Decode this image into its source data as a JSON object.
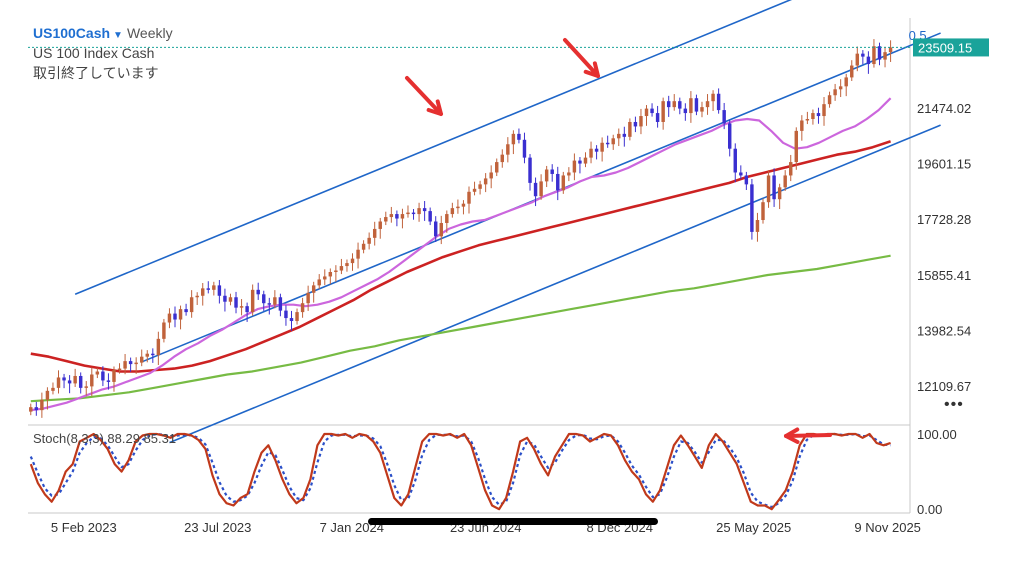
{
  "header": {
    "symbol": "US100Cash",
    "timeframe": "Weekly",
    "name": "US 100 Index Cash",
    "status": "取引終了しています"
  },
  "colors": {
    "bull": "#c0623b",
    "bear": "#3a2fd0",
    "channel": "#1f66c8",
    "ma_fast": "#cc66dd",
    "ma_mid": "#cc2222",
    "ma_slow": "#77bb44",
    "stoch_k": "#c0391b",
    "stoch_d": "#2a4fc8",
    "arrow": "#e53030",
    "last_price_bg": "#1aa39a"
  },
  "icons": {
    "more": "more-horizontal-icon",
    "arrows": "arrow-pointer-icon"
  },
  "more_label": "•••",
  "chart_data": [
    {
      "type": "candlestick",
      "name": "US 100 Index Cash",
      "yaxis_ticks": [
        "12109.67",
        "13982.54",
        "15855.41",
        "17728.28",
        "19601.15",
        "21474.02"
      ],
      "ylim": [
        10800,
        24500
      ],
      "last_price": "23509.15",
      "channel_label": "0.5",
      "xaxis_ticks": [
        "5 Feb 2023",
        "23 Jul 2023",
        "7 Jan 2024",
        "23 Jun 2024",
        "8 Dec 2024",
        "25 May 2025",
        "9 Nov 2025"
      ],
      "x_start": "2022-11-27",
      "x_end": "2025-12-07",
      "closes": [
        11400,
        11300,
        11650,
        11950,
        12050,
        12400,
        12300,
        12200,
        12450,
        12050,
        12100,
        12500,
        12600,
        12300,
        12250,
        12650,
        12700,
        12950,
        12850,
        12900,
        13100,
        13200,
        13150,
        13700,
        14250,
        14550,
        14350,
        14700,
        14600,
        15100,
        15150,
        15400,
        15350,
        15500,
        15150,
        14950,
        15100,
        14750,
        14800,
        14600,
        15350,
        15200,
        14900,
        14850,
        15100,
        14650,
        14400,
        14300,
        14600,
        14900,
        15250,
        15500,
        15700,
        15800,
        15950,
        16000,
        16150,
        16250,
        16400,
        16700,
        16900,
        17100,
        17400,
        17650,
        17800,
        17900,
        17750,
        17900,
        17950,
        17900,
        18100,
        18000,
        17650,
        17150,
        17600,
        17900,
        18100,
        18150,
        18250,
        18650,
        18750,
        18900,
        19100,
        19300,
        19650,
        19900,
        20250,
        20600,
        20400,
        19800,
        18950,
        18500,
        19000,
        19400,
        19250,
        18700,
        19200,
        19300,
        19700,
        19600,
        19800,
        20100,
        20000,
        20300,
        20250,
        20450,
        20600,
        20500,
        21000,
        20850,
        21200,
        21450,
        21300,
        21000,
        21700,
        21500,
        21700,
        21450,
        21300,
        21800,
        21350,
        21500,
        21700,
        21950,
        21400,
        20950,
        20100,
        19300,
        19200,
        18900,
        17300,
        17700,
        18300,
        19200,
        18400,
        18800,
        19200,
        19650,
        20700,
        21050,
        21100,
        21300,
        21200,
        21600,
        21900,
        22100,
        22200,
        22500,
        22900,
        23300,
        23200,
        22950,
        23550,
        23100,
        23350,
        23509
      ],
      "ma_fast": [
        11300,
        11350,
        11450,
        11550,
        11700,
        11850,
        12000,
        12100,
        12250,
        12400,
        12550,
        12800,
        13100,
        13350,
        13550,
        13800,
        14000,
        14250,
        14500,
        14700,
        14800,
        14850,
        14850,
        14800,
        14850,
        14950,
        15100,
        15300,
        15500,
        15700,
        15950,
        16250,
        16550,
        16850,
        17150,
        17400,
        17550,
        17650,
        17700,
        17850,
        18000,
        18150,
        18300,
        18500,
        18650,
        18800,
        19000,
        19150,
        19200,
        19300,
        19450,
        19650,
        19850,
        20050,
        20250,
        20400,
        20550,
        20700,
        20900,
        21050,
        21100,
        21050,
        20700,
        20300,
        20100,
        20150,
        20300,
        20500,
        20700,
        20850,
        21100,
        21400,
        21800
      ],
      "ma_mid": [
        13200,
        13100,
        12950,
        12800,
        12700,
        12600,
        12600,
        12650,
        12700,
        12800,
        12950,
        13150,
        13350,
        13600,
        13850,
        14100,
        14400,
        14700,
        15000,
        15350,
        15650,
        15950,
        16200,
        16450,
        16650,
        16850,
        17000,
        17150,
        17300,
        17450,
        17600,
        17750,
        17900,
        18050,
        18200,
        18350,
        18500,
        18650,
        18800,
        18950,
        19150,
        19300,
        19450,
        19600,
        19750,
        19900,
        20000,
        20150,
        20350
      ],
      "ma_slow": [
        11600,
        11650,
        11700,
        11800,
        11900,
        12050,
        12200,
        12350,
        12500,
        12600,
        12750,
        12900,
        13100,
        13300,
        13450,
        13650,
        13800,
        13950,
        14100,
        14250,
        14400,
        14550,
        14700,
        14850,
        15000,
        15150,
        15300,
        15400,
        15550,
        15700,
        15850,
        15950,
        16050,
        16200,
        16350,
        16500
      ]
    },
    {
      "type": "line",
      "name": "Stoch(8,3,3)",
      "legend": "Stoch(8,3,3) 88.29 85.31",
      "k_value": "88.29",
      "d_value": "85.31",
      "yaxis_ticks": [
        "100.00",
        "0.00"
      ],
      "ylim": [
        -5,
        108
      ],
      "k": [
        60,
        35,
        20,
        10,
        25,
        50,
        60,
        90,
        95,
        100,
        92,
        80,
        60,
        50,
        65,
        90,
        98,
        100,
        100,
        98,
        95,
        100,
        100,
        98,
        92,
        80,
        45,
        20,
        8,
        5,
        15,
        20,
        50,
        75,
        85,
        65,
        40,
        20,
        8,
        15,
        40,
        85,
        100,
        100,
        98,
        100,
        95,
        100,
        98,
        90,
        75,
        45,
        15,
        5,
        20,
        55,
        90,
        100,
        100,
        98,
        100,
        95,
        100,
        85,
        55,
        25,
        5,
        0,
        15,
        50,
        90,
        95,
        80,
        60,
        45,
        70,
        85,
        100,
        100,
        98,
        90,
        95,
        100,
        98,
        85,
        65,
        50,
        40,
        20,
        10,
        25,
        55,
        85,
        98,
        85,
        70,
        55,
        85,
        100,
        90,
        75,
        60,
        35,
        10,
        5,
        5,
        0,
        12,
        25,
        50,
        85,
        100,
        100,
        98,
        100,
        100,
        98,
        100,
        100,
        95,
        100,
        88,
        85,
        88
      ],
      "d": [
        70,
        48,
        28,
        18,
        20,
        35,
        50,
        75,
        88,
        96,
        94,
        85,
        70,
        56,
        60,
        78,
        92,
        98,
        100,
        99,
        97,
        98,
        99,
        98,
        95,
        86,
        62,
        36,
        18,
        10,
        12,
        18,
        35,
        58,
        76,
        72,
        52,
        30,
        15,
        12,
        28,
        62,
        90,
        98,
        99,
        99,
        97,
        98,
        98,
        94,
        84,
        60,
        32,
        12,
        14,
        38,
        72,
        92,
        99,
        99,
        99,
        97,
        98,
        90,
        68,
        40,
        16,
        6,
        10,
        35,
        72,
        90,
        86,
        70,
        55,
        62,
        78,
        92,
        98,
        99,
        94,
        93,
        97,
        98,
        90,
        75,
        58,
        46,
        30,
        16,
        20,
        42,
        70,
        90,
        88,
        76,
        62,
        76,
        92,
        92,
        82,
        68,
        48,
        22,
        10,
        6,
        3,
        8,
        18,
        38,
        70,
        92,
        99,
        99,
        99,
        100,
        99,
        99,
        100,
        97,
        98,
        92,
        86,
        85
      ]
    }
  ]
}
